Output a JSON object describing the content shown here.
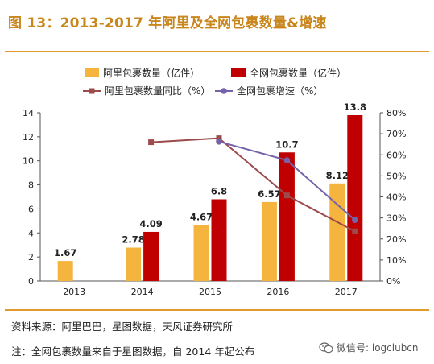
{
  "title": "图 13：2013-2017 年阿里及全网包裹数量&增速",
  "source": "资料来源：阿里巴巴，星图数据，天风证券研究所",
  "note": "注：全网包裹数量来自于星图数据，自 2014 年起公布",
  "watermark": "微信号: logclubcn",
  "colors": {
    "title": "#c8861c",
    "rule": "#e39a2d",
    "ali_bar": "#f5b43e",
    "total_bar": "#c00000",
    "ali_line": "#9c4a4a",
    "total_line": "#7462aa"
  },
  "chart_data": {
    "type": "bar",
    "categories": [
      "2013",
      "2014",
      "2015",
      "2016",
      "2017"
    ],
    "series": [
      {
        "name": "阿里包裹数量（亿件）",
        "type": "bar",
        "axis": "left",
        "values": [
          1.67,
          2.78,
          4.67,
          6.57,
          8.12
        ],
        "labels": [
          "1.67",
          "2.78",
          "4.67",
          "6.57",
          "8.12"
        ]
      },
      {
        "name": "全网包裹数量（亿件）",
        "type": "bar",
        "axis": "left",
        "values": [
          null,
          4.09,
          6.8,
          10.7,
          13.8
        ],
        "labels": [
          "",
          "4.09",
          "6.8",
          "10.7",
          "13.8"
        ]
      },
      {
        "name": "阿里包裹数量同比（%）",
        "type": "line",
        "axis": "right",
        "values": [
          null,
          66,
          67.9,
          40.7,
          23.6
        ]
      },
      {
        "name": "全网包裹增速（%）",
        "type": "line",
        "axis": "right",
        "values": [
          null,
          null,
          66.3,
          57.4,
          29
        ]
      }
    ],
    "left_axis": {
      "min": 0,
      "max": 14,
      "ticks": [
        "0",
        "2",
        "4",
        "6",
        "8",
        "10",
        "12",
        "14"
      ]
    },
    "right_axis": {
      "min": 0,
      "max": 80,
      "ticks": [
        "0%",
        "10%",
        "20%",
        "30%",
        "40%",
        "50%",
        "60%",
        "70%",
        "80%"
      ]
    },
    "legend_position": "top",
    "grid": false
  }
}
